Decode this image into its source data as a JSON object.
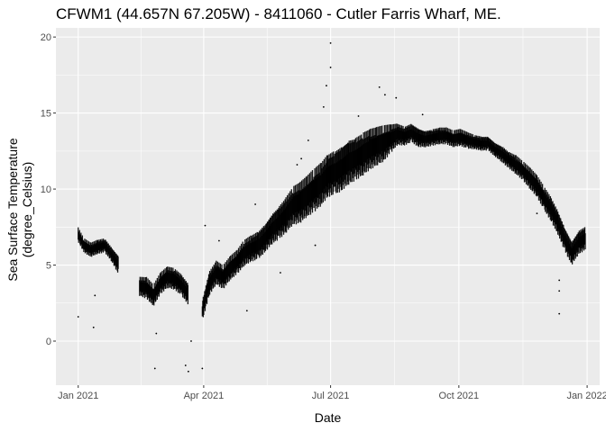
{
  "chart_data": {
    "type": "scatter",
    "title": "CFWM1 (44.657N 67.205W) -  8411060 - Cutler Farris Wharf, ME.",
    "xlabel": "Date",
    "ylabel": [
      "Sea Surface Temperature",
      "(degree_Celsius)"
    ],
    "x_ticks": [
      "2021-01-01",
      "2021-04-01",
      "2021-07-01",
      "2021-10-01",
      "2022-01-01"
    ],
    "x_tick_labels": [
      "Jan 2021",
      "Apr 2021",
      "Jul 2021",
      "Oct 2021",
      "Jan 2022"
    ],
    "y_ticks": [
      0,
      5,
      10,
      15,
      20
    ],
    "xlim": [
      "2020-12-16",
      "2022-01-10"
    ],
    "ylim": [
      -2.9,
      20.6
    ],
    "grid": true,
    "point_color": "#000000",
    "panel_color": "#ebebeb",
    "series": [
      {
        "x": [
          "2021-01-01",
          "2021-01-05",
          "2021-01-10",
          "2021-01-15",
          "2021-01-20",
          "2021-01-25",
          "2021-01-30",
          "2021-02-04",
          "2021-02-09",
          "2021-02-14",
          "2021-02-19",
          "2021-02-24",
          "2021-03-01",
          "2021-03-06",
          "2021-03-11",
          "2021-03-16",
          "2021-03-21",
          "2021-03-26",
          "2021-03-31",
          "2021-04-05",
          "2021-04-10",
          "2021-04-15",
          "2021-04-20",
          "2021-04-25",
          "2021-04-30",
          "2021-05-05",
          "2021-05-10",
          "2021-05-15",
          "2021-05-20",
          "2021-05-25",
          "2021-05-30",
          "2021-06-04",
          "2021-06-09",
          "2021-06-14",
          "2021-06-19",
          "2021-06-24",
          "2021-06-29",
          "2021-07-04",
          "2021-07-09",
          "2021-07-14",
          "2021-07-19",
          "2021-07-24",
          "2021-07-29",
          "2021-08-03",
          "2021-08-08",
          "2021-08-13",
          "2021-08-18",
          "2021-08-23",
          "2021-08-28",
          "2021-09-02",
          "2021-09-07",
          "2021-09-12",
          "2021-09-17",
          "2021-09-22",
          "2021-09-27",
          "2021-10-02",
          "2021-10-07",
          "2021-10-12",
          "2021-10-17",
          "2021-10-22",
          "2021-10-27",
          "2021-11-01",
          "2021-11-06",
          "2021-11-11",
          "2021-11-16",
          "2021-11-21",
          "2021-11-26",
          "2021-12-01",
          "2021-12-06",
          "2021-12-11",
          "2021-12-16",
          "2021-12-21",
          "2021-12-26",
          "2021-12-31"
        ],
        "y": [
          7.0,
          6.3,
          6.0,
          6.2,
          6.3,
          5.7,
          5.0,
          null,
          null,
          3.6,
          3.5,
          3.0,
          3.8,
          4.2,
          4.1,
          3.7,
          3.1,
          null,
          2.0,
          3.8,
          4.5,
          4.2,
          4.8,
          5.2,
          5.8,
          6.1,
          6.3,
          6.8,
          7.4,
          7.8,
          8.3,
          8.9,
          9.1,
          9.5,
          9.9,
          10.3,
          10.9,
          11.1,
          11.4,
          11.8,
          12.0,
          12.3,
          12.6,
          12.8,
          13.0,
          13.3,
          13.6,
          13.5,
          13.7,
          13.4,
          13.3,
          13.4,
          13.5,
          13.5,
          13.3,
          13.4,
          13.2,
          13.1,
          13.0,
          13.0,
          12.6,
          12.3,
          11.9,
          11.6,
          11.2,
          10.7,
          10.2,
          9.4,
          8.7,
          7.8,
          6.7,
          5.8,
          6.5,
          6.8
        ],
        "spread": [
          0.6,
          0.6,
          0.6,
          0.6,
          0.6,
          0.6,
          0.8,
          0,
          0,
          0.8,
          0.9,
          0.9,
          0.9,
          0.9,
          0.9,
          0.9,
          0.9,
          0,
          0.9,
          1.0,
          1.0,
          1.0,
          1.0,
          1.0,
          1.1,
          1.1,
          1.2,
          1.2,
          1.3,
          1.4,
          1.5,
          1.6,
          1.7,
          1.7,
          1.8,
          1.8,
          1.8,
          1.9,
          1.9,
          1.9,
          1.8,
          1.8,
          1.7,
          1.6,
          1.5,
          1.2,
          0.9,
          0.8,
          0.8,
          0.8,
          0.7,
          0.7,
          0.7,
          0.7,
          0.7,
          0.7,
          0.7,
          0.6,
          0.6,
          0.6,
          0.6,
          0.7,
          0.7,
          0.8,
          0.8,
          0.9,
          0.9,
          1.0,
          1.0,
          1.0,
          1.0,
          1.0,
          1.0,
          1.0
        ],
        "outliers": [
          {
            "x": "2021-01-01",
            "y": 1.6
          },
          {
            "x": "2021-01-12",
            "y": 0.9
          },
          {
            "x": "2021-01-13",
            "y": 3.0
          },
          {
            "x": "2021-02-25",
            "y": -1.8
          },
          {
            "x": "2021-02-26",
            "y": 0.5
          },
          {
            "x": "2021-03-08",
            "y": 3.9
          },
          {
            "x": "2021-03-19",
            "y": -1.6
          },
          {
            "x": "2021-03-21",
            "y": -2.0
          },
          {
            "x": "2021-03-23",
            "y": 0.0
          },
          {
            "x": "2021-03-31",
            "y": -1.8
          },
          {
            "x": "2021-04-02",
            "y": 7.6
          },
          {
            "x": "2021-04-12",
            "y": 6.6
          },
          {
            "x": "2021-05-02",
            "y": 2.0
          },
          {
            "x": "2021-05-08",
            "y": 9.0
          },
          {
            "x": "2021-05-26",
            "y": 4.5
          },
          {
            "x": "2021-06-07",
            "y": 11.6
          },
          {
            "x": "2021-06-10",
            "y": 12.0
          },
          {
            "x": "2021-06-15",
            "y": 13.2
          },
          {
            "x": "2021-06-20",
            "y": 6.3
          },
          {
            "x": "2021-06-26",
            "y": 15.4
          },
          {
            "x": "2021-06-28",
            "y": 16.8
          },
          {
            "x": "2021-07-01",
            "y": 18.0
          },
          {
            "x": "2021-07-01",
            "y": 19.6
          },
          {
            "x": "2021-07-21",
            "y": 14.8
          },
          {
            "x": "2021-08-05",
            "y": 16.7
          },
          {
            "x": "2021-08-09",
            "y": 16.2
          },
          {
            "x": "2021-08-17",
            "y": 16.0
          },
          {
            "x": "2021-09-05",
            "y": 14.9
          },
          {
            "x": "2021-11-26",
            "y": 8.4
          },
          {
            "x": "2021-12-12",
            "y": 1.8
          },
          {
            "x": "2021-12-12",
            "y": 4.0
          },
          {
            "x": "2021-12-12",
            "y": 3.3
          }
        ]
      }
    ]
  }
}
